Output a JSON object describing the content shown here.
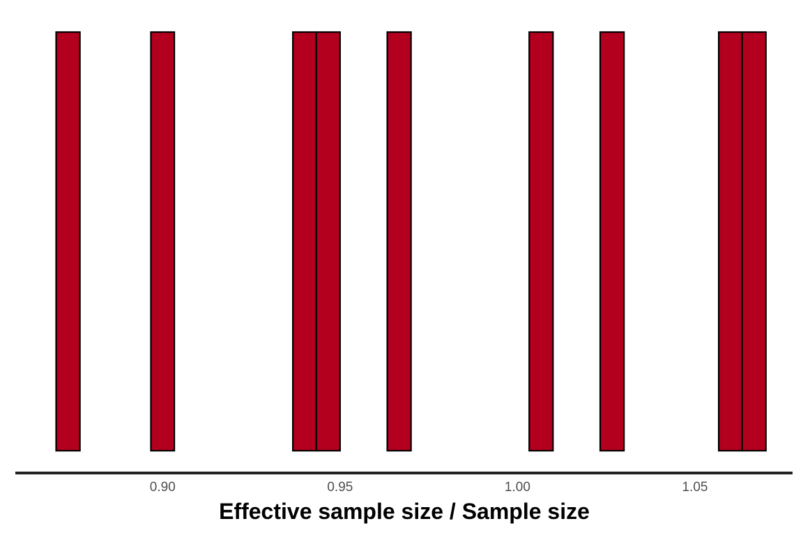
{
  "chart_data": {
    "type": "bar",
    "subtype": "histogram",
    "title": "",
    "xlabel": "Effective sample size / Sample size",
    "ylabel": "",
    "xlim": [
      0.8585,
      1.0775
    ],
    "ylim": [
      0,
      1.05
    ],
    "bin_width": 0.00667,
    "bins": [
      {
        "x0": 0.87,
        "x1": 0.8767,
        "count": 1
      },
      {
        "x0": 0.8767,
        "x1": 0.8833,
        "count": 0
      },
      {
        "x0": 0.8833,
        "x1": 0.89,
        "count": 0
      },
      {
        "x0": 0.89,
        "x1": 0.8967,
        "count": 0
      },
      {
        "x0": 0.8967,
        "x1": 0.9033,
        "count": 1
      },
      {
        "x0": 0.9033,
        "x1": 0.91,
        "count": 0
      },
      {
        "x0": 0.91,
        "x1": 0.9167,
        "count": 0
      },
      {
        "x0": 0.9167,
        "x1": 0.9233,
        "count": 0
      },
      {
        "x0": 0.9233,
        "x1": 0.93,
        "count": 0
      },
      {
        "x0": 0.93,
        "x1": 0.9367,
        "count": 0
      },
      {
        "x0": 0.9367,
        "x1": 0.9433,
        "count": 1
      },
      {
        "x0": 0.9433,
        "x1": 0.95,
        "count": 1
      },
      {
        "x0": 0.95,
        "x1": 0.9567,
        "count": 0
      },
      {
        "x0": 0.9567,
        "x1": 0.9633,
        "count": 0
      },
      {
        "x0": 0.9633,
        "x1": 0.97,
        "count": 1
      },
      {
        "x0": 0.97,
        "x1": 0.9767,
        "count": 0
      },
      {
        "x0": 0.9767,
        "x1": 0.9833,
        "count": 0
      },
      {
        "x0": 0.9833,
        "x1": 0.99,
        "count": 0
      },
      {
        "x0": 0.99,
        "x1": 0.9967,
        "count": 0
      },
      {
        "x0": 0.9967,
        "x1": 1.0033,
        "count": 0
      },
      {
        "x0": 1.0033,
        "x1": 1.01,
        "count": 1
      },
      {
        "x0": 1.01,
        "x1": 1.0167,
        "count": 0
      },
      {
        "x0": 1.0167,
        "x1": 1.0233,
        "count": 0
      },
      {
        "x0": 1.0233,
        "x1": 1.03,
        "count": 1
      },
      {
        "x0": 1.03,
        "x1": 1.0367,
        "count": 0
      },
      {
        "x0": 1.0367,
        "x1": 1.0433,
        "count": 0
      },
      {
        "x0": 1.0433,
        "x1": 1.05,
        "count": 0
      },
      {
        "x0": 1.05,
        "x1": 1.0567,
        "count": 0
      },
      {
        "x0": 1.0567,
        "x1": 1.0633,
        "count": 1
      },
      {
        "x0": 1.0633,
        "x1": 1.07,
        "count": 1
      }
    ],
    "x_ticks": [
      {
        "value": 0.9,
        "label": "0.90"
      },
      {
        "value": 0.95,
        "label": "0.95"
      },
      {
        "value": 1.0,
        "label": "1.00"
      },
      {
        "value": 1.05,
        "label": "1.05"
      }
    ],
    "grid": false,
    "legend": "none",
    "colors": {
      "bar_fill": "#b2001e",
      "bar_outline": "#000000",
      "axis_line": "#222222",
      "tick_label": "#4d4d4d",
      "axis_title": "#000000"
    }
  }
}
